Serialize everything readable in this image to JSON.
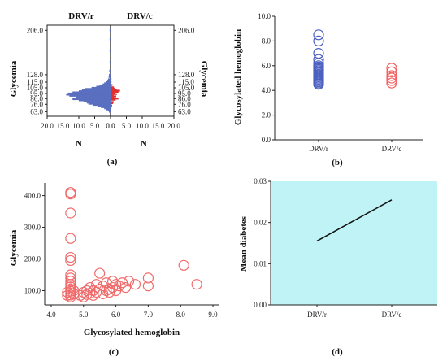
{
  "panels": [
    {
      "panel_label": "(a)",
      "chart_data": {
        "type": "bar",
        "orientation": "horizontal-mirrored",
        "headers": [
          "DRV/r",
          "DRV/c"
        ],
        "ylabel_left": "Glycemia",
        "ylabel_right": "Glycemia",
        "xlabel_left": "N",
        "xlabel_right": "N",
        "ylim": [
          55,
          215
        ],
        "y_ticks": [
          "63.0",
          "76.0",
          "86.0",
          "95.0",
          "105.0",
          "115.0",
          "128.0",
          "206.0"
        ],
        "y_tick_values": [
          63,
          76,
          86,
          95,
          105,
          115,
          128,
          206
        ],
        "x_ticks_left": [
          "20.0",
          "15.0",
          "10.0",
          "5.0",
          "0.0"
        ],
        "x_ticks_right": [
          "0.0",
          "5.0",
          "10.0",
          "15.0",
          "20.0"
        ],
        "xlim": [
          0,
          20
        ],
        "series": [
          {
            "name": "DRV/r",
            "color": "#5a6fc0",
            "y": [
              63,
              65,
              67,
              69,
              71,
              73,
              75,
              77,
              79,
              81,
              83,
              85,
              87,
              89,
              91,
              93,
              95,
              97,
              99,
              101,
              103,
              105,
              107,
              109,
              111,
              113,
              115,
              117,
              120,
              124,
              128,
              135,
              150,
              170,
              190,
              206
            ],
            "values": [
              0.5,
              0.8,
              1.5,
              2.0,
              3.0,
              4.0,
              5.5,
              7.0,
              7.5,
              8.5,
              10.0,
              12.0,
              9.0,
              11.0,
              13.0,
              14.0,
              13.5,
              12.0,
              10.0,
              9.0,
              8.0,
              6.0,
              4.5,
              3.5,
              2.5,
              2.0,
              1.5,
              1.0,
              0.8,
              0.6,
              0.5,
              0.4,
              0.3,
              0.3,
              0.3,
              0.3
            ]
          },
          {
            "name": "DRV/c",
            "color": "#e03030",
            "y": [
              70,
              74,
              78,
              80,
              84,
              86,
              88,
              90,
              92,
              94,
              96,
              98,
              100,
              102,
              104,
              106,
              110,
              115,
              120
            ],
            "values": [
              0.3,
              0.5,
              0.8,
              1.0,
              1.6,
              2.5,
              1.2,
              1.8,
              1.0,
              2.0,
              1.5,
              2.5,
              3.0,
              2.0,
              1.5,
              1.0,
              0.6,
              0.3,
              0.3
            ]
          }
        ]
      }
    },
    {
      "panel_label": "(b)",
      "chart_data": {
        "type": "scatter",
        "ylabel": "Glycosylated hemoglobin",
        "xlabel": "",
        "categories": [
          "DRV/r",
          "DRV/c"
        ],
        "ylim": [
          0,
          10
        ],
        "y_ticks": [
          "0.0",
          "2.0",
          "4.0",
          "6.0",
          "8.0",
          "10.0"
        ],
        "y_tick_values": [
          0,
          2,
          4,
          6,
          8,
          10
        ],
        "series": [
          {
            "name": "DRV/r",
            "color": "#4a5fc0",
            "values": [
              4.5,
              4.6,
              4.7,
              4.8,
              4.9,
              5.0,
              5.1,
              5.2,
              5.3,
              5.4,
              5.5,
              5.6,
              5.7,
              5.8,
              5.9,
              6.0,
              6.2,
              6.5,
              7.0,
              8.0,
              8.5
            ]
          },
          {
            "name": "DRV/c",
            "color": "#f06060",
            "values": [
              4.6,
              4.8,
              5.0,
              5.2,
              5.5,
              5.8
            ]
          }
        ]
      }
    },
    {
      "panel_label": "(c)",
      "chart_data": {
        "type": "scatter",
        "ylabel": "Glycemia",
        "xlabel": "Glycosylated hemoglobin",
        "xlim": [
          3.8,
          9.2
        ],
        "ylim": [
          55,
          440
        ],
        "x_ticks": [
          "4.0",
          "5.0",
          "6.0",
          "7.0",
          "8.0",
          "9.0"
        ],
        "x_tick_values": [
          4,
          5,
          6,
          7,
          8,
          9
        ],
        "y_ticks": [
          "100.0",
          "200.0",
          "300.0",
          "400.0"
        ],
        "y_tick_values": [
          100,
          200,
          300,
          400
        ],
        "series": [
          {
            "name": "",
            "color": "#f06a6a",
            "points": [
              [
                4.6,
                410
              ],
              [
                4.6,
                405
              ],
              [
                4.6,
                345
              ],
              [
                4.6,
                265
              ],
              [
                4.6,
                205
              ],
              [
                4.6,
                195
              ],
              [
                4.6,
                150
              ],
              [
                4.6,
                140
              ],
              [
                4.6,
                130
              ],
              [
                4.6,
                120
              ],
              [
                4.6,
                112
              ],
              [
                4.6,
                105
              ],
              [
                4.6,
                98
              ],
              [
                4.6,
                92
              ],
              [
                4.6,
                86
              ],
              [
                4.6,
                80
              ],
              [
                4.5,
                85
              ],
              [
                4.5,
                95
              ],
              [
                4.7,
                100
              ],
              [
                4.7,
                90
              ],
              [
                4.9,
                85
              ],
              [
                5.0,
                95
              ],
              [
                5.0,
                80
              ],
              [
                5.1,
                100
              ],
              [
                5.1,
                88
              ],
              [
                5.2,
                92
              ],
              [
                5.2,
                110
              ],
              [
                5.3,
                85
              ],
              [
                5.3,
                100
              ],
              [
                5.4,
                95
              ],
              [
                5.4,
                120
              ],
              [
                5.5,
                155
              ],
              [
                5.5,
                105
              ],
              [
                5.6,
                90
              ],
              [
                5.6,
                115
              ],
              [
                5.7,
                100
              ],
              [
                5.7,
                125
              ],
              [
                5.8,
                105
              ],
              [
                5.8,
                95
              ],
              [
                5.9,
                110
              ],
              [
                5.9,
                130
              ],
              [
                6.0,
                120
              ],
              [
                6.0,
                100
              ],
              [
                6.1,
                115
              ],
              [
                6.2,
                125
              ],
              [
                6.3,
                110
              ],
              [
                6.4,
                130
              ],
              [
                6.6,
                120
              ],
              [
                7.0,
                140
              ],
              [
                7.0,
                115
              ],
              [
                8.1,
                180
              ],
              [
                8.5,
                120
              ]
            ]
          }
        ]
      }
    },
    {
      "panel_label": "(d)",
      "chart_data": {
        "type": "line",
        "ylabel": "Mean diabetes",
        "xlabel": "",
        "categories": [
          "DRV/r",
          "DRV/c"
        ],
        "ylim": [
          0,
          0.03
        ],
        "y_ticks": [
          "0.00",
          "0.01",
          "0.02",
          "0.03"
        ],
        "y_tick_values": [
          0,
          0.01,
          0.02,
          0.03
        ],
        "background": "#bff3f5",
        "series": [
          {
            "name": "",
            "color": "#111111",
            "values": [
              0.0155,
              0.0255
            ]
          }
        ]
      }
    }
  ]
}
